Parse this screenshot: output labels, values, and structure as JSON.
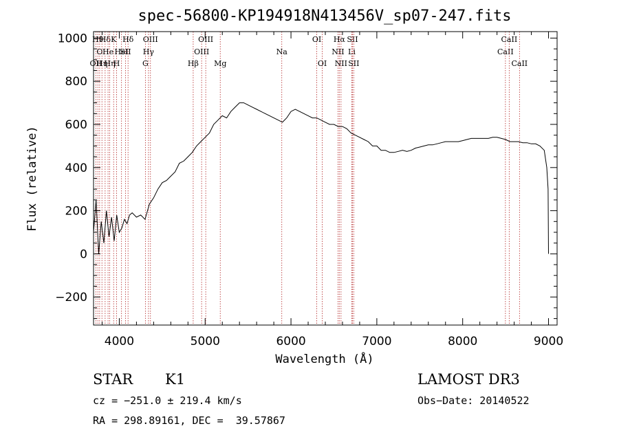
{
  "chart_data": {
    "type": "line",
    "title": "spec-56800-KP194918N413456V_sp07-247.fits",
    "xlabel": "Wavelength (Å)",
    "ylabel": "Flux (relative)",
    "xlim": [
      3700,
      9100
    ],
    "ylim": [
      -330,
      1030
    ],
    "xticks": [
      4000,
      5000,
      6000,
      7000,
      8000,
      9000
    ],
    "yticks": [
      -200,
      0,
      200,
      400,
      600,
      800,
      1000
    ],
    "series": [
      {
        "x": [
          3700,
          3730,
          3760,
          3790,
          3820,
          3850,
          3880,
          3910,
          3940,
          3970,
          4000,
          4030,
          4060,
          4090,
          4120,
          4150,
          4200,
          4250,
          4300,
          4350,
          4400,
          4450,
          4500,
          4550,
          4600,
          4650,
          4700,
          4750,
          4800,
          4850,
          4900,
          4950,
          5000,
          5050,
          5100,
          5150,
          5200,
          5250,
          5300,
          5350,
          5400,
          5450,
          5500,
          5550,
          5600,
          5650,
          5700,
          5750,
          5800,
          5850,
          5900,
          5950,
          6000,
          6050,
          6100,
          6150,
          6200,
          6250,
          6300,
          6350,
          6400,
          6450,
          6500,
          6550,
          6600,
          6650,
          6700,
          6750,
          6800,
          6850,
          6900,
          6950,
          7000,
          7050,
          7100,
          7150,
          7200,
          7250,
          7300,
          7350,
          7400,
          7450,
          7500,
          7550,
          7600,
          7650,
          7700,
          7750,
          7800,
          7850,
          7900,
          7950,
          8000,
          8050,
          8100,
          8150,
          8200,
          8250,
          8300,
          8350,
          8400,
          8450,
          8500,
          8550,
          8600,
          8650,
          8700,
          8750,
          8800,
          8850,
          8900,
          8950,
          8980,
          8995,
          9000
        ],
        "y": [
          100,
          250,
          0,
          150,
          50,
          200,
          80,
          170,
          60,
          180,
          100,
          120,
          160,
          140,
          180,
          190,
          170,
          180,
          160,
          230,
          260,
          300,
          330,
          340,
          360,
          380,
          420,
          430,
          450,
          470,
          500,
          520,
          540,
          560,
          600,
          620,
          640,
          630,
          660,
          680,
          700,
          700,
          690,
          680,
          670,
          660,
          650,
          640,
          630,
          620,
          610,
          630,
          660,
          670,
          660,
          650,
          640,
          630,
          630,
          620,
          610,
          600,
          600,
          590,
          590,
          580,
          560,
          550,
          540,
          530,
          520,
          500,
          500,
          480,
          480,
          470,
          470,
          475,
          480,
          475,
          480,
          490,
          495,
          500,
          505,
          505,
          510,
          515,
          520,
          520,
          520,
          520,
          525,
          530,
          535,
          535,
          535,
          535,
          535,
          540,
          540,
          535,
          530,
          520,
          520,
          520,
          515,
          515,
          510,
          510,
          500,
          480,
          400,
          300,
          0
        ]
      }
    ],
    "lines": [
      {
        "x": 3727,
        "label": "OII",
        "row": 3
      },
      {
        "x": 3750,
        "label": "Hθ",
        "row": 1
      },
      {
        "x": 3771,
        "label": "O",
        "row": 2
      },
      {
        "x": 3798,
        "label": "Hη",
        "row": 3
      },
      {
        "x": 3835,
        "label": "Hδ",
        "row": 1
      },
      {
        "x": 3869,
        "label": "He",
        "row": 2
      },
      {
        "x": 3889,
        "label": "Hη",
        "row": 3
      },
      {
        "x": 3934,
        "label": "K",
        "row": 1
      },
      {
        "x": 3969,
        "label": "H",
        "row": 3
      },
      {
        "x": 4026,
        "label": "HeI",
        "row": 2
      },
      {
        "x": 4072,
        "label": "SII",
        "row": 2
      },
      {
        "x": 4102,
        "label": "Hδ",
        "row": 1
      },
      {
        "x": 4304,
        "label": "G",
        "row": 3
      },
      {
        "x": 4340,
        "label": "Hγ",
        "row": 2
      },
      {
        "x": 4363,
        "label": "OIII",
        "row": 1
      },
      {
        "x": 4861,
        "label": "Hβ",
        "row": 3
      },
      {
        "x": 4959,
        "label": "OIII",
        "row": 2
      },
      {
        "x": 5007,
        "label": "OIII",
        "row": 1
      },
      {
        "x": 5176,
        "label": "Mg",
        "row": 3
      },
      {
        "x": 5893,
        "label": "Na",
        "row": 2
      },
      {
        "x": 6300,
        "label": "OI",
        "row": 1
      },
      {
        "x": 6364,
        "label": "OI",
        "row": 3
      },
      {
        "x": 6548,
        "label": "NII",
        "row": 2
      },
      {
        "x": 6563,
        "label": "Hα",
        "row": 1
      },
      {
        "x": 6583,
        "label": "NII",
        "row": 3
      },
      {
        "x": 6708,
        "label": "Li",
        "row": 2
      },
      {
        "x": 6716,
        "label": "SII",
        "row": 1
      },
      {
        "x": 6731,
        "label": "SII",
        "row": 3
      },
      {
        "x": 8498,
        "label": "CaII",
        "row": 2
      },
      {
        "x": 8542,
        "label": "CaII",
        "row": 1
      },
      {
        "x": 8662,
        "label": "CaII",
        "row": 3
      }
    ]
  },
  "info": {
    "class": "STAR",
    "subclass": "K1",
    "survey": "LAMOST DR3",
    "cz": "cz = −251.0 ± 219.4 km/s",
    "obsdate": "Obs−Date: 20140522",
    "radec": "RA = 298.89161, DEC =  39.57867"
  },
  "colors": {
    "ink": "#000000",
    "linemark": "#b22222"
  }
}
